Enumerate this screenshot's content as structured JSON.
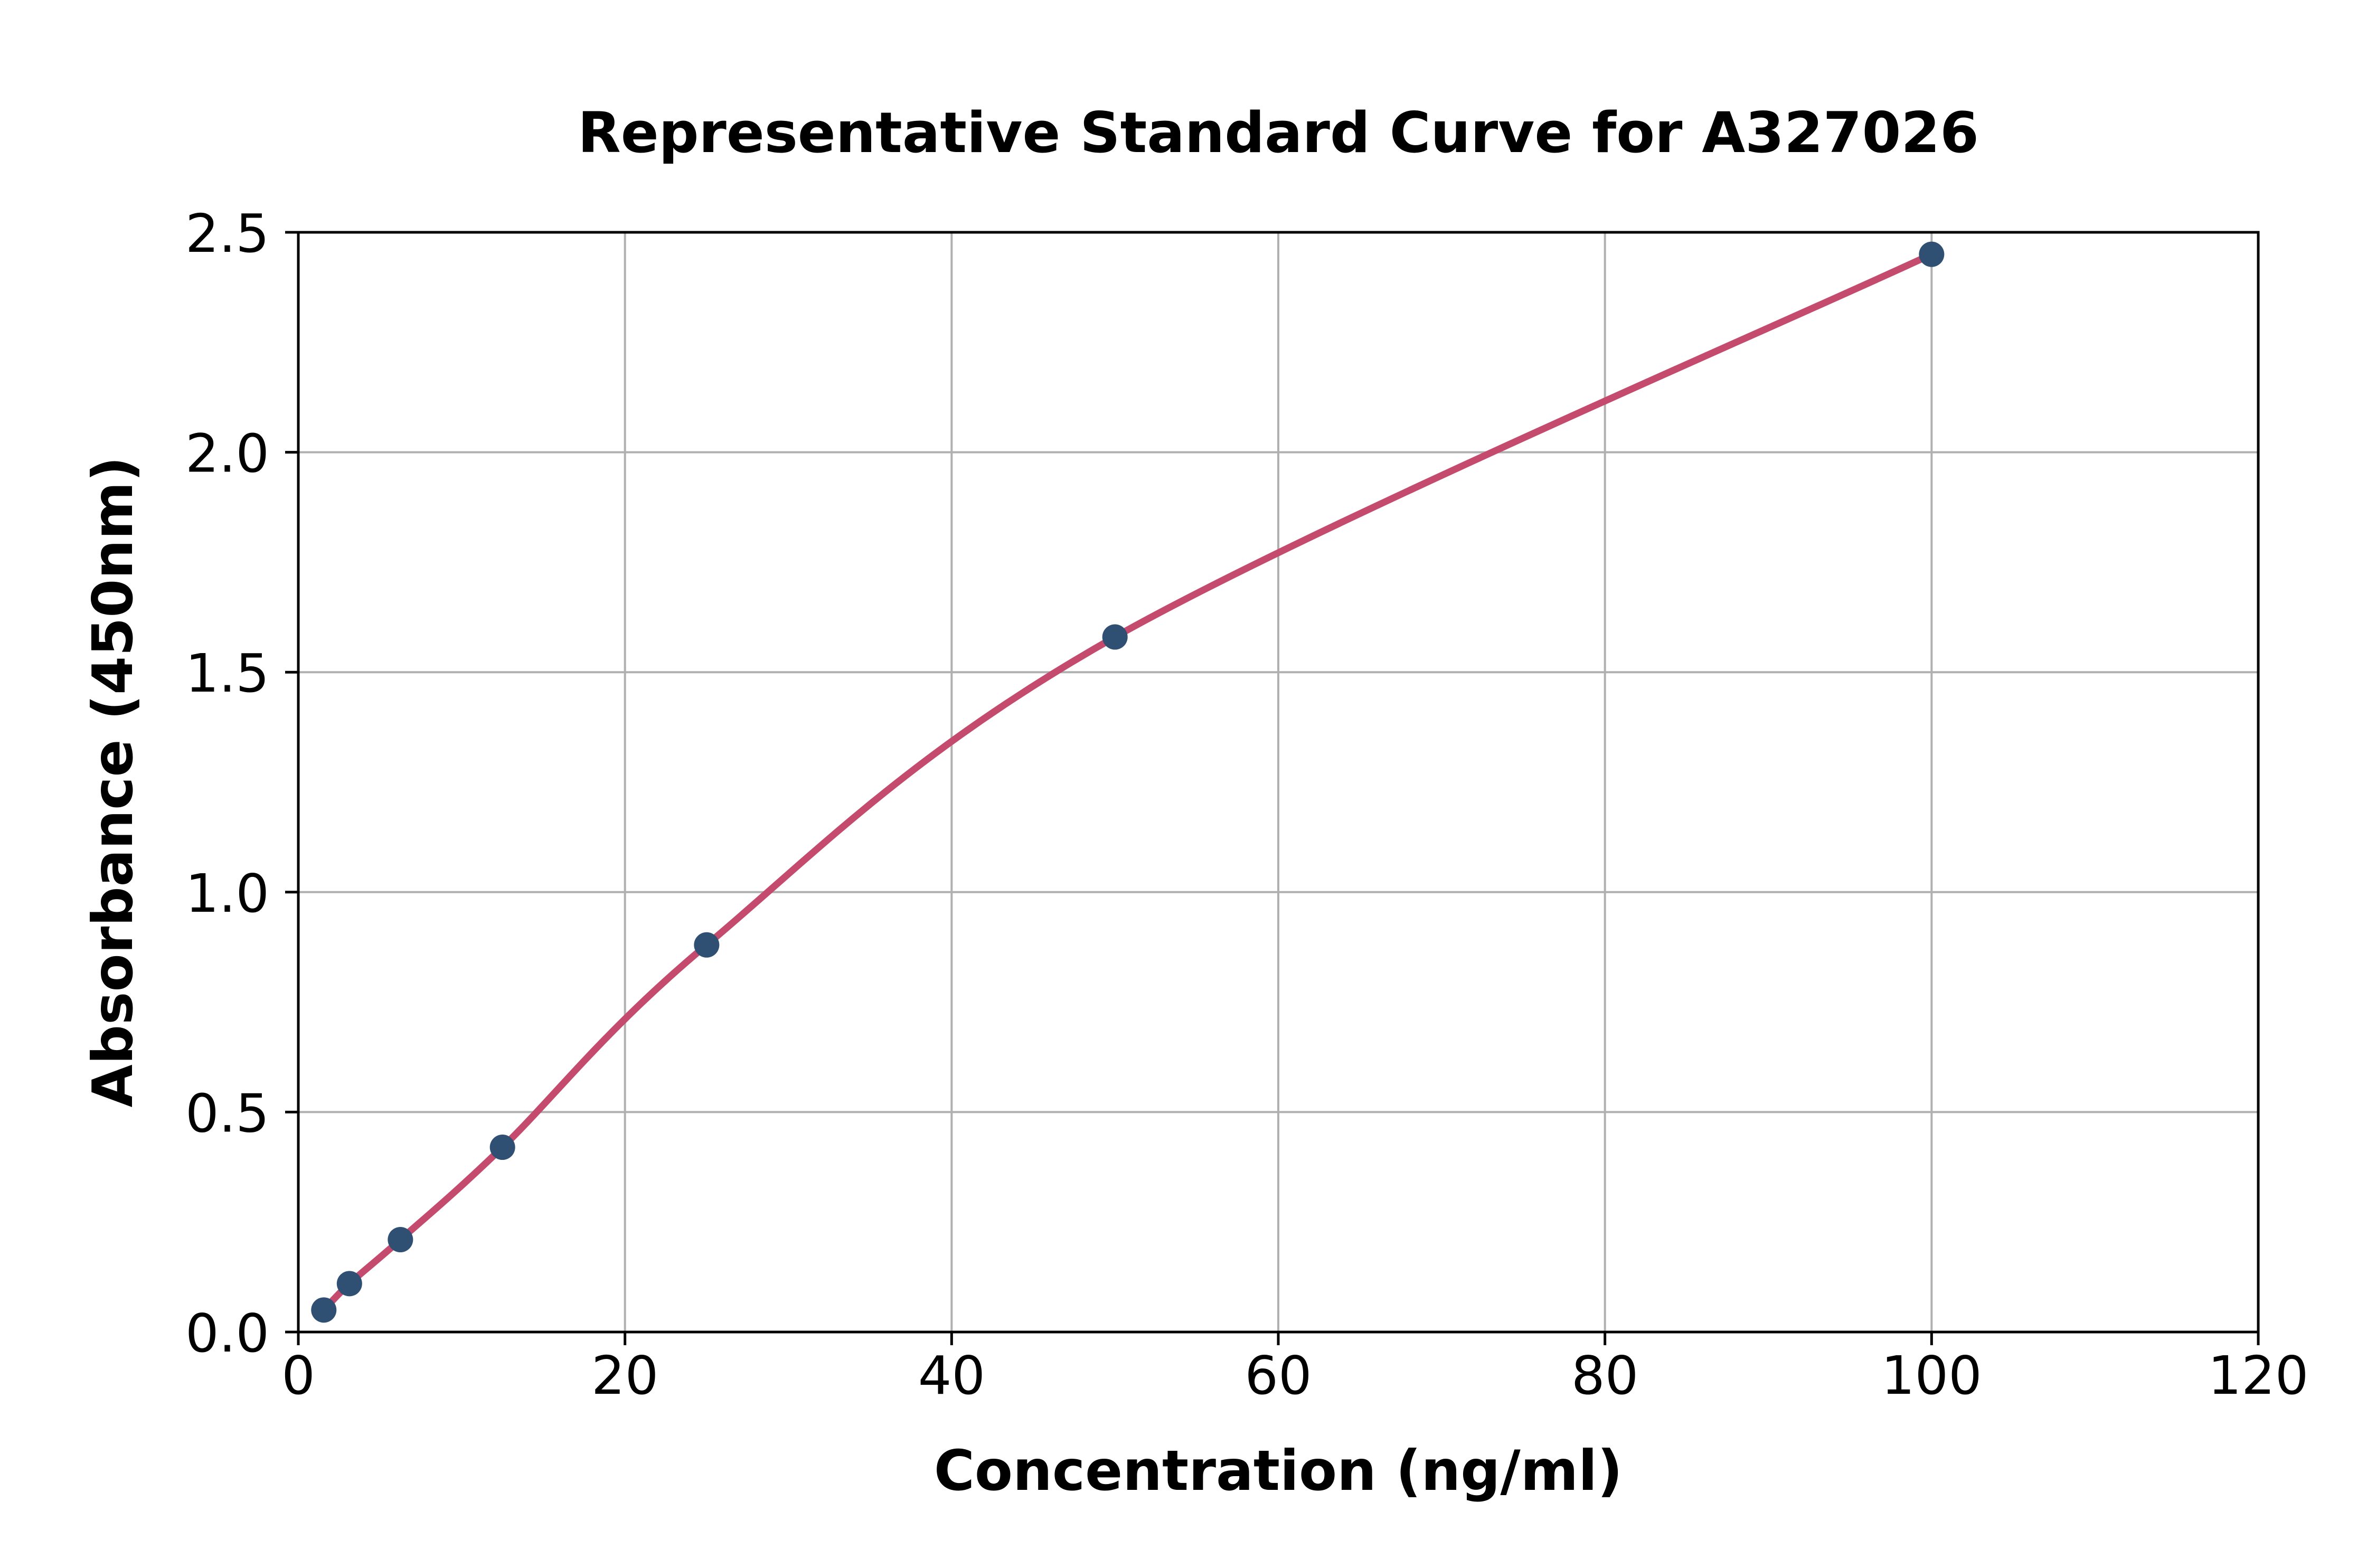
{
  "chart_data": {
    "type": "scatter",
    "title": "Representative Standard Curve for A327026",
    "xlabel": "Concentration (ng/ml)",
    "ylabel": "Absorbance (450nm)",
    "series": [
      {
        "name": "standard-curve",
        "x": [
          1.56,
          3.13,
          6.25,
          12.5,
          25,
          50,
          100
        ],
        "y": [
          0.05,
          0.11,
          0.21,
          0.42,
          0.88,
          1.58,
          2.45
        ]
      }
    ],
    "fit_curve_through_points": true,
    "xlim": [
      0,
      120
    ],
    "ylim": [
      0.0,
      2.5
    ],
    "xticks": [
      0,
      20,
      40,
      60,
      80,
      100,
      120
    ],
    "xtick_labels": [
      "0",
      "20",
      "40",
      "60",
      "80",
      "100",
      "120"
    ],
    "yticks": [
      0,
      0.5,
      1.0,
      1.5,
      2.0,
      2.5
    ],
    "ytick_labels": [
      "0.0",
      "0.5",
      "1.0",
      "1.5",
      "2.0",
      "2.5"
    ],
    "grid": true,
    "legend_position": "none",
    "colors": {
      "curve": "#c44a6e",
      "marker": "#2f5073",
      "grid": "#b0b0b0",
      "spine": "#000000",
      "text": "#000000",
      "background": "#ffffff"
    }
  }
}
